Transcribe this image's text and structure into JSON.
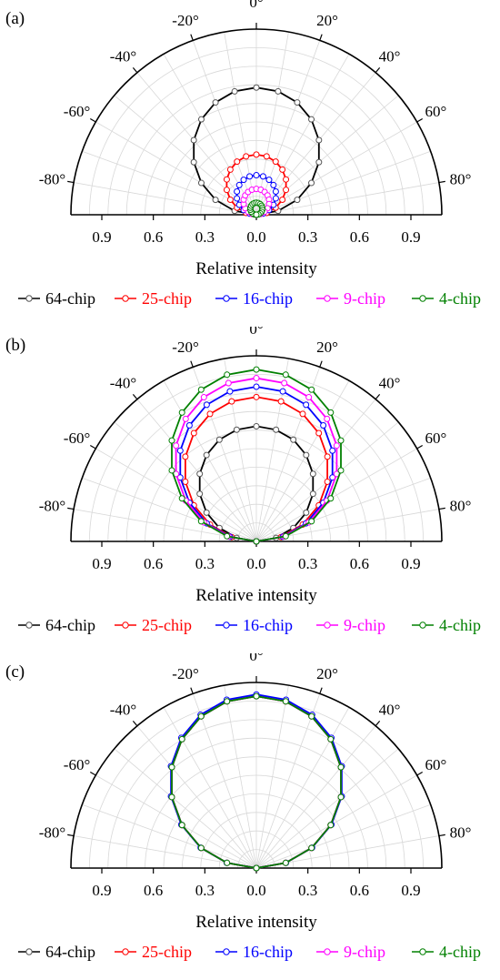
{
  "chart_data": [
    {
      "type": "polar-semicircle",
      "panel_label": "(a)",
      "xlabel": "Relative intensity",
      "angle_ticks": [
        "-80°",
        "-60°",
        "-40°",
        "-20°",
        "0°",
        "20°",
        "40°",
        "60°",
        "80°"
      ],
      "angle_tick_values": [
        -80,
        -60,
        -40,
        -20,
        0,
        20,
        40,
        60,
        80
      ],
      "radial_tick_labels": [
        "0.9",
        "0.6",
        "0.3",
        "0.0",
        "0.3",
        "0.6",
        "0.9"
      ],
      "radial_tick_values": [
        -0.9,
        -0.6,
        -0.3,
        0,
        0.3,
        0.6,
        0.9
      ],
      "rlim": [
        0,
        1.08
      ],
      "grid": true,
      "legend_position": "bottom",
      "angles": [
        -90,
        -80,
        -70,
        -60,
        -50,
        -40,
        -30,
        -20,
        -10,
        0,
        10,
        20,
        30,
        40,
        50,
        60,
        70,
        80,
        90
      ],
      "series": [
        {
          "name": "64-chip",
          "color": "#000000",
          "peak": 0.74
        },
        {
          "name": "25-chip",
          "color": "#ff0000",
          "peak": 0.35
        },
        {
          "name": "16-chip",
          "color": "#0000ff",
          "peak": 0.23
        },
        {
          "name": "9-chip",
          "color": "#ff00ff",
          "peak": 0.15
        },
        {
          "name": "4-chip",
          "color": "#008000",
          "peak": 0.07
        }
      ]
    },
    {
      "type": "polar-semicircle",
      "panel_label": "(b)",
      "xlabel": "Relative intensity",
      "angle_ticks": [
        "-80°",
        "-60°",
        "-40°",
        "-20°",
        "0°",
        "20°",
        "40°",
        "60°",
        "80°"
      ],
      "angle_tick_values": [
        -80,
        -60,
        -40,
        -20,
        0,
        20,
        40,
        60,
        80
      ],
      "radial_tick_labels": [
        "0.9",
        "0.6",
        "0.3",
        "0.0",
        "0.3",
        "0.6",
        "0.9"
      ],
      "radial_tick_values": [
        -0.9,
        -0.6,
        -0.3,
        0,
        0.3,
        0.6,
        0.9
      ],
      "rlim": [
        0,
        1.08
      ],
      "grid": true,
      "legend_position": "bottom",
      "angles": [
        -90,
        -80,
        -70,
        -60,
        -50,
        -40,
        -30,
        -20,
        -10,
        0,
        10,
        20,
        30,
        40,
        50,
        60,
        70,
        80,
        90
      ],
      "series": [
        {
          "name": "64-chip",
          "color": "#000000",
          "peak": 0.67
        },
        {
          "name": "25-chip",
          "color": "#ff0000",
          "peak": 0.84
        },
        {
          "name": "16-chip",
          "color": "#0000ff",
          "peak": 0.9
        },
        {
          "name": "9-chip",
          "color": "#ff00ff",
          "peak": 0.95
        },
        {
          "name": "4-chip",
          "color": "#008000",
          "peak": 1.0
        }
      ]
    },
    {
      "type": "polar-semicircle",
      "panel_label": "(c)",
      "xlabel": "Relative intensity",
      "angle_ticks": [
        "-80°",
        "-60°",
        "-40°",
        "-20°",
        "0°",
        "20°",
        "40°",
        "60°",
        "80°"
      ],
      "angle_tick_values": [
        -80,
        -60,
        -40,
        -20,
        0,
        20,
        40,
        60,
        80
      ],
      "radial_tick_labels": [
        "0.9",
        "0.6",
        "0.3",
        "0.0",
        "0.3",
        "0.6",
        "0.9"
      ],
      "radial_tick_values": [
        -0.9,
        -0.6,
        -0.3,
        0,
        0.3,
        0.6,
        0.9
      ],
      "rlim": [
        0,
        1.08
      ],
      "grid": true,
      "legend_position": "bottom",
      "angles": [
        -90,
        -80,
        -70,
        -60,
        -50,
        -40,
        -30,
        -20,
        -10,
        0,
        10,
        20,
        30,
        40,
        50,
        60,
        70,
        80,
        90
      ],
      "series": [
        {
          "name": "64-chip",
          "color": "#000000",
          "peak": 1.0
        },
        {
          "name": "25-chip",
          "color": "#ff0000",
          "peak": 1.0
        },
        {
          "name": "16-chip",
          "color": "#0000ff",
          "peak": 1.01
        },
        {
          "name": "9-chip",
          "color": "#ff00ff",
          "peak": 1.0
        },
        {
          "name": "4-chip",
          "color": "#008000",
          "peak": 1.0
        }
      ]
    }
  ]
}
